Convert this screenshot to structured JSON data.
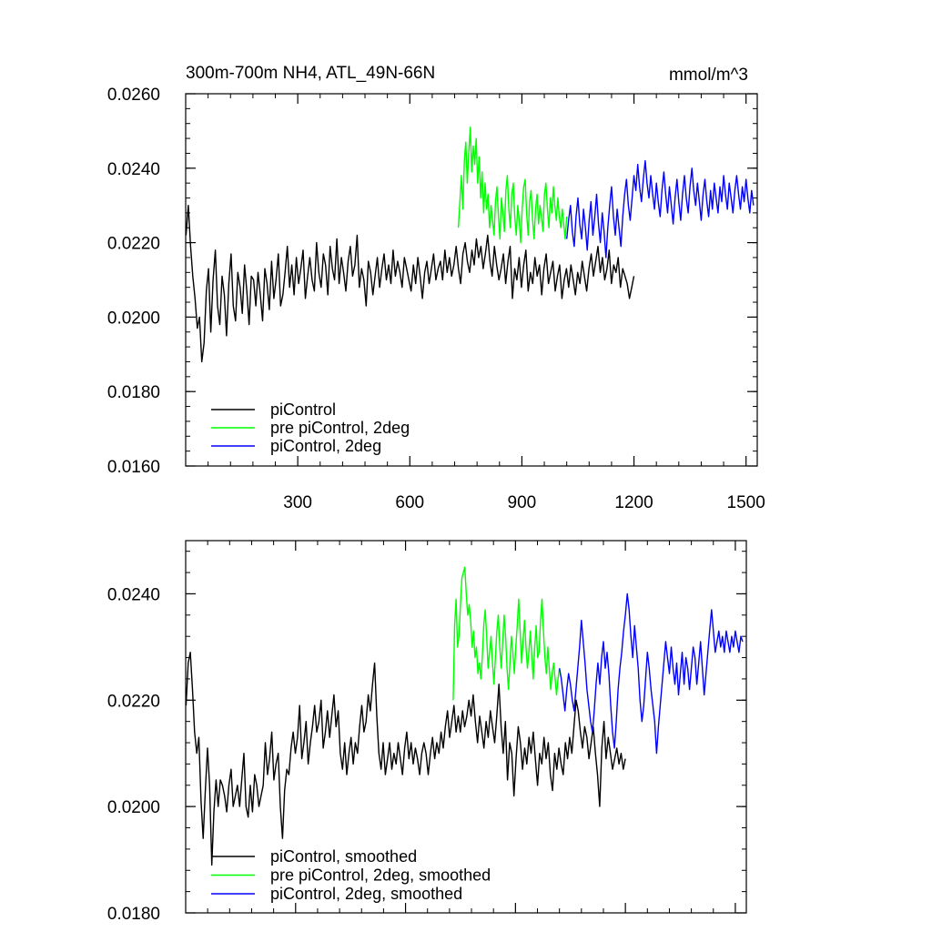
{
  "chart_data": [
    {
      "type": "line",
      "title": "300m-700m NH4, ATL_49N-66N",
      "units": "mmol/m^3",
      "xlabel": "",
      "ylabel": "",
      "xlim": [
        0,
        1530
      ],
      "ylim": [
        0.016,
        0.026
      ],
      "xticks": [
        300,
        600,
        900,
        1200,
        1500
      ],
      "xtick_labels": [
        "300",
        "600",
        "900",
        "1200",
        "1500"
      ],
      "yticks": [
        0.016,
        0.018,
        0.02,
        0.022,
        0.024,
        0.026
      ],
      "ytick_labels": [
        "0.0160",
        "0.0180",
        "0.0200",
        "0.0220",
        "0.0240",
        "0.0260"
      ],
      "grid": false,
      "legend_position": "bottom-left",
      "series": [
        {
          "name": "piControl",
          "color": "#000000",
          "x_start": 1,
          "x_end": 1200,
          "x_step": 6,
          "values": [
            0.0222,
            0.023,
            0.0219,
            0.0211,
            0.0205,
            0.0197,
            0.02,
            0.0188,
            0.0193,
            0.0207,
            0.0213,
            0.0196,
            0.021,
            0.0218,
            0.0203,
            0.0198,
            0.0211,
            0.0206,
            0.0195,
            0.0209,
            0.0217,
            0.0203,
            0.0199,
            0.0212,
            0.0208,
            0.0201,
            0.0214,
            0.0207,
            0.0198,
            0.0211,
            0.021,
            0.0203,
            0.0212,
            0.0206,
            0.0199,
            0.0213,
            0.0209,
            0.0202,
            0.0215,
            0.0205,
            0.021,
            0.0217,
            0.0203,
            0.0206,
            0.0212,
            0.0219,
            0.0208,
            0.0214,
            0.0206,
            0.0216,
            0.0209,
            0.0213,
            0.0218,
            0.0205,
            0.0211,
            0.0216,
            0.021,
            0.0207,
            0.022,
            0.0212,
            0.0208,
            0.0217,
            0.0214,
            0.0206,
            0.0219,
            0.0213,
            0.021,
            0.0221,
            0.0209,
            0.0216,
            0.0212,
            0.0207,
            0.0215,
            0.0219,
            0.0211,
            0.0214,
            0.0222,
            0.0208,
            0.0213,
            0.021,
            0.0203,
            0.0215,
            0.0212,
            0.0206,
            0.0211,
            0.0216,
            0.0208,
            0.0213,
            0.0217,
            0.021,
            0.0214,
            0.0209,
            0.0218,
            0.0211,
            0.0215,
            0.0212,
            0.0208,
            0.0216,
            0.0213,
            0.021,
            0.0207,
            0.0214,
            0.0209,
            0.0216,
            0.0211,
            0.0205,
            0.0212,
            0.0215,
            0.0209,
            0.0213,
            0.0217,
            0.021,
            0.0213,
            0.0215,
            0.021,
            0.0218,
            0.0212,
            0.0216,
            0.0211,
            0.0214,
            0.0219,
            0.0213,
            0.0209,
            0.0217,
            0.022,
            0.0215,
            0.0212,
            0.0218,
            0.0214,
            0.0221,
            0.0216,
            0.0219,
            0.0213,
            0.0217,
            0.0222,
            0.0215,
            0.0211,
            0.0219,
            0.0214,
            0.021,
            0.0213,
            0.0217,
            0.0209,
            0.0215,
            0.0219,
            0.0205,
            0.0213,
            0.021,
            0.0216,
            0.0208,
            0.0214,
            0.0218,
            0.0207,
            0.0212,
            0.0209,
            0.0216,
            0.0211,
            0.0214,
            0.0206,
            0.0213,
            0.0217,
            0.0209,
            0.0212,
            0.0215,
            0.0207,
            0.0211,
            0.0214,
            0.0205,
            0.021,
            0.0213,
            0.0208,
            0.0214,
            0.021,
            0.0206,
            0.0212,
            0.0209,
            0.0215,
            0.0211,
            0.0207,
            0.0213,
            0.0217,
            0.0211,
            0.0215,
            0.0219,
            0.0212,
            0.0216,
            0.021,
            0.0213,
            0.0218,
            0.0209,
            0.0214,
            0.0212,
            0.0216,
            0.0208,
            0.0213,
            0.0211,
            0.0209,
            0.0205,
            0.0208,
            0.0211
          ]
        },
        {
          "name": "pre piControl, 2deg",
          "color": "#00ff00",
          "x_start": 730,
          "x_end": 1020,
          "x_step": 4,
          "values": [
            0.0224,
            0.0231,
            0.0238,
            0.0229,
            0.0242,
            0.0247,
            0.0236,
            0.0244,
            0.0251,
            0.0239,
            0.0246,
            0.0241,
            0.0248,
            0.0236,
            0.0243,
            0.0232,
            0.0239,
            0.0228,
            0.0236,
            0.0229,
            0.0233,
            0.0224,
            0.023,
            0.0226,
            0.0222,
            0.0231,
            0.0235,
            0.0227,
            0.0221,
            0.0232,
            0.0228,
            0.0223,
            0.0234,
            0.0238,
            0.0229,
            0.0224,
            0.0233,
            0.0236,
            0.0227,
            0.0222,
            0.023,
            0.0226,
            0.022,
            0.0229,
            0.0235,
            0.0237,
            0.0228,
            0.0222,
            0.0231,
            0.0234,
            0.0226,
            0.0221,
            0.0229,
            0.0233,
            0.0225,
            0.023,
            0.0227,
            0.0223,
            0.0233,
            0.0236,
            0.0229,
            0.0224,
            0.0232,
            0.0228,
            0.0235,
            0.023,
            0.0226,
            0.0232,
            0.0227,
            0.0224,
            0.0229,
            0.0225,
            0.0221,
            0.0227
          ]
        },
        {
          "name": "piControl, 2deg",
          "color": "#0000ff",
          "x_start": 1020,
          "x_end": 1520,
          "x_step": 5,
          "values": [
            0.0221,
            0.0226,
            0.023,
            0.0223,
            0.0219,
            0.0227,
            0.0232,
            0.0225,
            0.0221,
            0.0229,
            0.0224,
            0.0218,
            0.0226,
            0.0231,
            0.0222,
            0.0227,
            0.0233,
            0.0225,
            0.022,
            0.0228,
            0.0223,
            0.0216,
            0.0224,
            0.023,
            0.0235,
            0.0227,
            0.0222,
            0.0229,
            0.0224,
            0.0219,
            0.0227,
            0.0233,
            0.0237,
            0.023,
            0.0226,
            0.0232,
            0.0238,
            0.0234,
            0.0241,
            0.0235,
            0.0231,
            0.0237,
            0.0242,
            0.0236,
            0.0232,
            0.0238,
            0.0233,
            0.0229,
            0.0236,
            0.0231,
            0.0227,
            0.0234,
            0.0239,
            0.0233,
            0.0228,
            0.0235,
            0.023,
            0.0225,
            0.0232,
            0.0237,
            0.0231,
            0.0226,
            0.0233,
            0.0238,
            0.0232,
            0.0228,
            0.0235,
            0.024,
            0.0234,
            0.023,
            0.0236,
            0.0231,
            0.0226,
            0.0233,
            0.0237,
            0.0231,
            0.0227,
            0.0234,
            0.0229,
            0.0236,
            0.0232,
            0.0228,
            0.0235,
            0.0231,
            0.0238,
            0.0233,
            0.0229,
            0.0236,
            0.0232,
            0.0228,
            0.0234,
            0.0238,
            0.0233,
            0.0229,
            0.0235,
            0.0231,
            0.0237,
            0.0232,
            0.0228,
            0.0234,
            0.023
          ]
        }
      ]
    },
    {
      "type": "line",
      "title": "",
      "xlabel": "",
      "ylabel": "",
      "xlim": [
        0,
        1530
      ],
      "ylim": [
        0.018,
        0.025
      ],
      "xticks": [
        300,
        600,
        900,
        1200,
        1500
      ],
      "yticks": [
        0.018,
        0.02,
        0.022,
        0.024
      ],
      "ytick_labels": [
        "0.0180",
        "0.0200",
        "0.0220",
        "0.0240"
      ],
      "grid": false,
      "legend_position": "bottom-left",
      "series": [
        {
          "name": "piControl, smoothed",
          "color": "#000000",
          "x_start": 1,
          "x_end": 1200,
          "x_step": 6,
          "values": [
            0.0219,
            0.0227,
            0.0229,
            0.0222,
            0.0214,
            0.021,
            0.0213,
            0.0201,
            0.0194,
            0.0203,
            0.0211,
            0.0204,
            0.0189,
            0.0199,
            0.0205,
            0.02,
            0.0205,
            0.0204,
            0.0202,
            0.0199,
            0.0204,
            0.0207,
            0.02,
            0.0202,
            0.0204,
            0.02,
            0.0205,
            0.021,
            0.02,
            0.0198,
            0.0204,
            0.0199,
            0.0206,
            0.0204,
            0.02,
            0.0202,
            0.0204,
            0.0212,
            0.0206,
            0.0209,
            0.0214,
            0.0205,
            0.0208,
            0.021,
            0.02,
            0.0194,
            0.0203,
            0.0207,
            0.0206,
            0.0211,
            0.0214,
            0.021,
            0.0213,
            0.0219,
            0.0209,
            0.0212,
            0.0216,
            0.0208,
            0.0212,
            0.0215,
            0.0219,
            0.0214,
            0.0216,
            0.022,
            0.0211,
            0.0214,
            0.0218,
            0.0213,
            0.0217,
            0.0221,
            0.0215,
            0.0218,
            0.021,
            0.0207,
            0.0212,
            0.0206,
            0.021,
            0.0213,
            0.0208,
            0.0212,
            0.021,
            0.0215,
            0.0219,
            0.0214,
            0.0216,
            0.0221,
            0.0218,
            0.0223,
            0.0227,
            0.0217,
            0.021,
            0.0207,
            0.0212,
            0.0206,
            0.0209,
            0.0212,
            0.0207,
            0.021,
            0.0208,
            0.0212,
            0.0209,
            0.0206,
            0.0211,
            0.0214,
            0.0209,
            0.0212,
            0.0208,
            0.0211,
            0.0209,
            0.0206,
            0.021,
            0.0212,
            0.021,
            0.0206,
            0.021,
            0.0213,
            0.0209,
            0.0212,
            0.021,
            0.0214,
            0.0211,
            0.0215,
            0.0218,
            0.0213,
            0.0216,
            0.0219,
            0.0214,
            0.0217,
            0.0214,
            0.0218,
            0.0215,
            0.0217,
            0.022,
            0.0217,
            0.0221,
            0.0216,
            0.0212,
            0.0217,
            0.0214,
            0.0211,
            0.0216,
            0.0213,
            0.0218,
            0.0215,
            0.0212,
            0.0217,
            0.0223,
            0.0215,
            0.021,
            0.0216,
            0.0205,
            0.0212,
            0.021,
            0.0202,
            0.0209,
            0.0215,
            0.0212,
            0.0207,
            0.0211,
            0.0208,
            0.0213,
            0.021,
            0.0214,
            0.0209,
            0.0204,
            0.021,
            0.0208,
            0.0213,
            0.0209,
            0.0212,
            0.0206,
            0.0203,
            0.021,
            0.0207,
            0.0211,
            0.0208,
            0.0206,
            0.0212,
            0.0209,
            0.0213,
            0.021,
            0.0215,
            0.022,
            0.0218,
            0.0214,
            0.0211,
            0.0215,
            0.0213,
            0.0209,
            0.0212,
            0.0215,
            0.021,
            0.0206,
            0.02,
            0.0211,
            0.0216,
            0.0209,
            0.0213,
            0.021,
            0.0207,
            0.0209,
            0.0211,
            0.0208,
            0.021,
            0.0207,
            0.0209
          ]
        },
        {
          "name": "pre piControl, 2deg, smoothed",
          "color": "#00ff00",
          "x_start": 730,
          "x_end": 1020,
          "x_step": 4,
          "values": [
            0.022,
            0.0234,
            0.0239,
            0.023,
            0.0232,
            0.0238,
            0.0243,
            0.0244,
            0.0245,
            0.024,
            0.0236,
            0.0238,
            0.0235,
            0.023,
            0.0233,
            0.0228,
            0.023,
            0.0225,
            0.0227,
            0.0224,
            0.0228,
            0.0234,
            0.0237,
            0.0232,
            0.0226,
            0.0229,
            0.0232,
            0.0227,
            0.0223,
            0.0228,
            0.0233,
            0.0236,
            0.023,
            0.0226,
            0.0231,
            0.0236,
            0.0232,
            0.0226,
            0.0222,
            0.0227,
            0.0232,
            0.0229,
            0.0225,
            0.023,
            0.0234,
            0.0239,
            0.0233,
            0.0227,
            0.0231,
            0.0235,
            0.023,
            0.0226,
            0.0229,
            0.0233,
            0.0228,
            0.0224,
            0.023,
            0.0234,
            0.0228,
            0.0229,
            0.0235,
            0.0239,
            0.0233,
            0.0228,
            0.0225,
            0.023,
            0.0226,
            0.0222,
            0.0225,
            0.0227,
            0.0224,
            0.0221,
            0.0224,
            0.0226
          ]
        },
        {
          "name": "piControl, 2deg, smoothed",
          "color": "#0000ff",
          "x_start": 1020,
          "x_end": 1520,
          "x_step": 5,
          "values": [
            0.0226,
            0.0224,
            0.0221,
            0.0218,
            0.0222,
            0.0225,
            0.0223,
            0.022,
            0.0218,
            0.0222,
            0.0226,
            0.023,
            0.0235,
            0.0231,
            0.0227,
            0.0222,
            0.0219,
            0.0216,
            0.0214,
            0.0218,
            0.0223,
            0.0227,
            0.0223,
            0.0228,
            0.0231,
            0.0226,
            0.0229,
            0.0225,
            0.0219,
            0.0214,
            0.0211,
            0.0216,
            0.0222,
            0.0226,
            0.0229,
            0.0233,
            0.0236,
            0.024,
            0.0237,
            0.0232,
            0.0228,
            0.0234,
            0.023,
            0.0226,
            0.022,
            0.0216,
            0.0219,
            0.0224,
            0.0229,
            0.0226,
            0.0222,
            0.0219,
            0.0216,
            0.021,
            0.0215,
            0.0219,
            0.0223,
            0.0227,
            0.0231,
            0.0228,
            0.0225,
            0.023,
            0.0226,
            0.0223,
            0.0227,
            0.0221,
            0.0225,
            0.0229,
            0.0223,
            0.0228,
            0.0226,
            0.0222,
            0.0226,
            0.023,
            0.0228,
            0.0223,
            0.0227,
            0.0231,
            0.0226,
            0.0221,
            0.0225,
            0.0229,
            0.0233,
            0.0237,
            0.0233,
            0.0229,
            0.0231,
            0.0233,
            0.023,
            0.0232,
            0.0229,
            0.0233,
            0.0231,
            0.0229,
            0.0232,
            0.023,
            0.0233,
            0.0231,
            0.0229,
            0.0232,
            0.0231
          ]
        }
      ]
    }
  ]
}
